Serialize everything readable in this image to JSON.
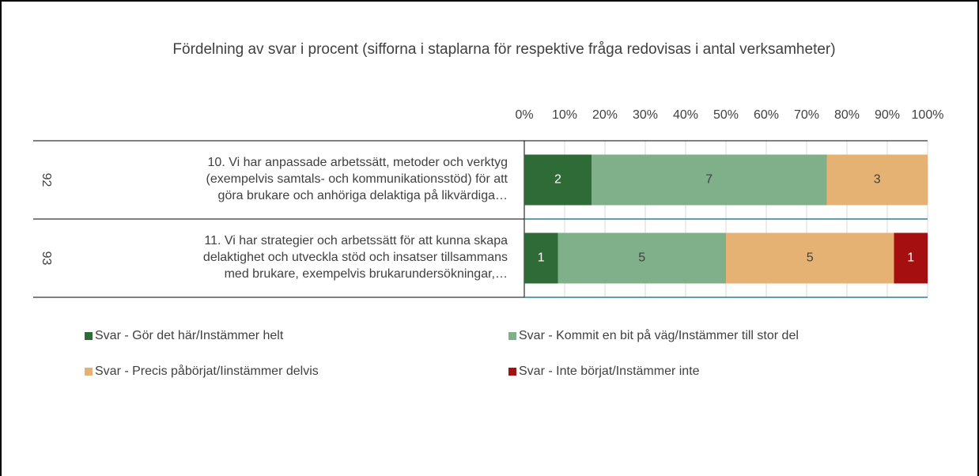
{
  "chart_data": {
    "type": "bar",
    "orientation": "horizontal",
    "stacking": "percent",
    "title": "Fördelning av svar i procent (sifforna i staplarna för respektive fråga redovisas i antal verksamheter)",
    "groups": [
      "92",
      "93"
    ],
    "categories": [
      "10. Vi har anpassade arbetssätt, metoder och verktyg\n(exempelvis samtals- och kommunikationsstöd) för att\ngöra brukare och anhöriga delaktiga på likvärdiga…",
      "11. Vi har strategier och arbetssätt för att kunna skapa\ndelaktighet och utveckla stöd och insatser tillsammans\nmed brukare, exempelvis brukarundersökningar,…"
    ],
    "series": [
      {
        "name": "Svar - Gör det här/Instämmer helt",
        "color": "#2e6b36",
        "values": [
          2,
          1
        ]
      },
      {
        "name": "Svar - Kommit en bit på väg/Instämmer till stor del",
        "color": "#7fb08a",
        "values": [
          7,
          5
        ]
      },
      {
        "name": "Svar - Precis påbörjat/Iinstämmer delvis",
        "color": "#e6b273",
        "values": [
          3,
          5
        ]
      },
      {
        "name": "Svar - Inte börjat/Instämmer inte",
        "color": "#a50f0f",
        "values": [
          null,
          1
        ]
      }
    ],
    "xlim": [
      0,
      100
    ],
    "xticks": [
      {
        "value": 0,
        "label": "0%"
      },
      {
        "value": 10,
        "label": "10%"
      },
      {
        "value": 20,
        "label": "20%"
      },
      {
        "value": 30,
        "label": "30%"
      },
      {
        "value": 40,
        "label": "40%"
      },
      {
        "value": 50,
        "label": "50%"
      },
      {
        "value": 60,
        "label": "60%"
      },
      {
        "value": 70,
        "label": "70%"
      },
      {
        "value": 80,
        "label": "80%"
      },
      {
        "value": 90,
        "label": "90%"
      },
      {
        "value": 100,
        "label": "100%"
      }
    ],
    "grid": true,
    "legend": "bottom"
  }
}
